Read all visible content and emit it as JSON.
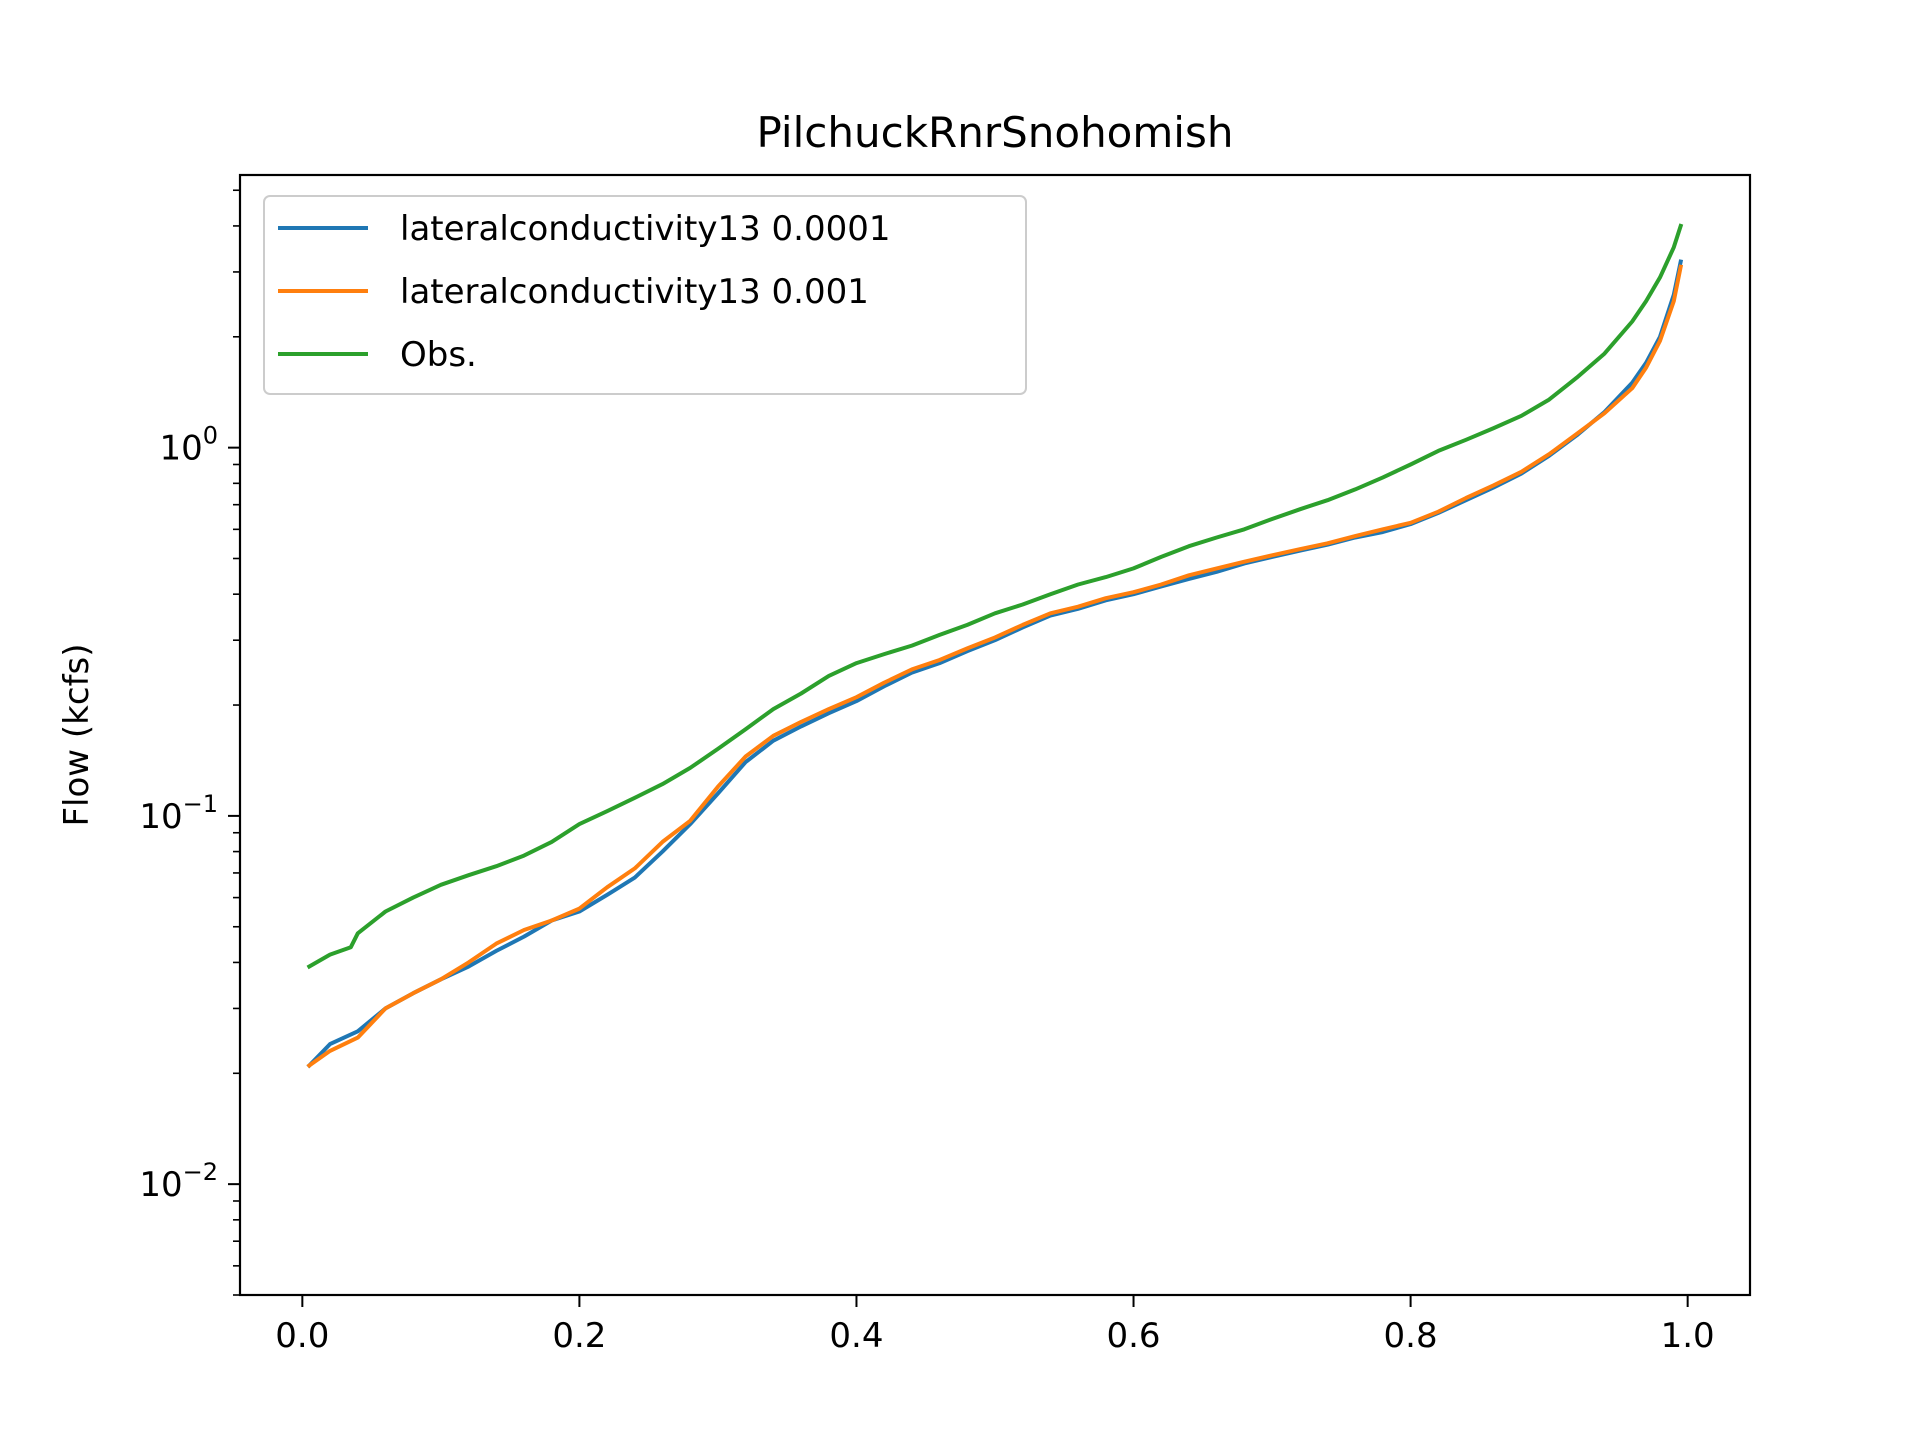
{
  "chart_data": {
    "type": "line",
    "title": "PilchuckRnrSnohomish",
    "xlabel": "",
    "ylabel": "Flow (kcfs)",
    "xlim": [
      -0.045,
      1.045
    ],
    "ylim": [
      0.005,
      5.5
    ],
    "yscale": "log",
    "grid": false,
    "legend_position": "top-left",
    "x_ticks": [
      0.0,
      0.2,
      0.4,
      0.6,
      0.8,
      1.0
    ],
    "x_tick_labels": [
      "0.0",
      "0.2",
      "0.4",
      "0.6",
      "0.8",
      "1.0"
    ],
    "y_ticks": [
      0.01,
      0.1,
      1
    ],
    "y_tick_labels": [
      {
        "base": "10",
        "exp": "−2"
      },
      {
        "base": "10",
        "exp": "−1"
      },
      {
        "base": "10",
        "exp": "0"
      }
    ],
    "series": [
      {
        "name": "lateralconductivity13 0.0001",
        "color": "#1f77b4",
        "x": [
          0.005,
          0.02,
          0.04,
          0.06,
          0.08,
          0.1,
          0.12,
          0.14,
          0.16,
          0.18,
          0.2,
          0.22,
          0.24,
          0.26,
          0.28,
          0.3,
          0.32,
          0.34,
          0.36,
          0.38,
          0.4,
          0.42,
          0.44,
          0.46,
          0.48,
          0.5,
          0.52,
          0.54,
          0.56,
          0.58,
          0.6,
          0.62,
          0.64,
          0.66,
          0.68,
          0.7,
          0.72,
          0.74,
          0.76,
          0.78,
          0.8,
          0.82,
          0.84,
          0.86,
          0.88,
          0.9,
          0.92,
          0.94,
          0.96,
          0.97,
          0.98,
          0.99,
          0.995
        ],
        "y": [
          0.021,
          0.024,
          0.026,
          0.03,
          0.033,
          0.036,
          0.039,
          0.043,
          0.047,
          0.052,
          0.055,
          0.061,
          0.068,
          0.08,
          0.095,
          0.115,
          0.14,
          0.16,
          0.175,
          0.19,
          0.205,
          0.225,
          0.245,
          0.26,
          0.28,
          0.3,
          0.325,
          0.35,
          0.365,
          0.385,
          0.4,
          0.42,
          0.44,
          0.46,
          0.485,
          0.505,
          0.525,
          0.545,
          0.57,
          0.59,
          0.62,
          0.665,
          0.72,
          0.78,
          0.85,
          0.95,
          1.08,
          1.25,
          1.5,
          1.7,
          2.0,
          2.6,
          3.2
        ]
      },
      {
        "name": "lateralconductivity13 0.001",
        "color": "#ff7f0e",
        "x": [
          0.005,
          0.02,
          0.04,
          0.06,
          0.08,
          0.1,
          0.12,
          0.14,
          0.16,
          0.18,
          0.2,
          0.22,
          0.24,
          0.26,
          0.28,
          0.3,
          0.32,
          0.34,
          0.36,
          0.38,
          0.4,
          0.42,
          0.44,
          0.46,
          0.48,
          0.5,
          0.52,
          0.54,
          0.56,
          0.58,
          0.6,
          0.62,
          0.64,
          0.66,
          0.68,
          0.7,
          0.72,
          0.74,
          0.76,
          0.78,
          0.8,
          0.82,
          0.84,
          0.86,
          0.88,
          0.9,
          0.92,
          0.94,
          0.96,
          0.97,
          0.98,
          0.99,
          0.995
        ],
        "y": [
          0.021,
          0.023,
          0.025,
          0.03,
          0.033,
          0.036,
          0.04,
          0.045,
          0.049,
          0.052,
          0.056,
          0.064,
          0.072,
          0.085,
          0.097,
          0.12,
          0.145,
          0.165,
          0.18,
          0.195,
          0.21,
          0.23,
          0.25,
          0.265,
          0.285,
          0.305,
          0.33,
          0.355,
          0.37,
          0.39,
          0.405,
          0.425,
          0.45,
          0.47,
          0.49,
          0.51,
          0.53,
          0.55,
          0.575,
          0.6,
          0.625,
          0.67,
          0.73,
          0.79,
          0.86,
          0.96,
          1.09,
          1.24,
          1.45,
          1.65,
          1.95,
          2.5,
          3.1
        ]
      },
      {
        "name": "Obs.",
        "color": "#2ca02c",
        "x": [
          0.005,
          0.02,
          0.035,
          0.04,
          0.06,
          0.08,
          0.1,
          0.12,
          0.14,
          0.16,
          0.18,
          0.2,
          0.22,
          0.24,
          0.26,
          0.28,
          0.3,
          0.32,
          0.34,
          0.36,
          0.38,
          0.4,
          0.42,
          0.44,
          0.46,
          0.48,
          0.5,
          0.52,
          0.54,
          0.56,
          0.58,
          0.6,
          0.62,
          0.64,
          0.66,
          0.68,
          0.7,
          0.72,
          0.74,
          0.76,
          0.78,
          0.8,
          0.82,
          0.84,
          0.86,
          0.88,
          0.9,
          0.92,
          0.94,
          0.96,
          0.97,
          0.98,
          0.99,
          0.995
        ],
        "y": [
          0.039,
          0.042,
          0.044,
          0.048,
          0.055,
          0.06,
          0.065,
          0.069,
          0.073,
          0.078,
          0.085,
          0.095,
          0.103,
          0.112,
          0.122,
          0.135,
          0.152,
          0.172,
          0.195,
          0.215,
          0.24,
          0.26,
          0.275,
          0.29,
          0.31,
          0.33,
          0.355,
          0.375,
          0.4,
          0.425,
          0.445,
          0.47,
          0.505,
          0.54,
          0.57,
          0.6,
          0.64,
          0.68,
          0.72,
          0.77,
          0.83,
          0.9,
          0.98,
          1.05,
          1.13,
          1.22,
          1.35,
          1.55,
          1.8,
          2.2,
          2.5,
          2.9,
          3.5,
          4.0
        ]
      }
    ]
  }
}
